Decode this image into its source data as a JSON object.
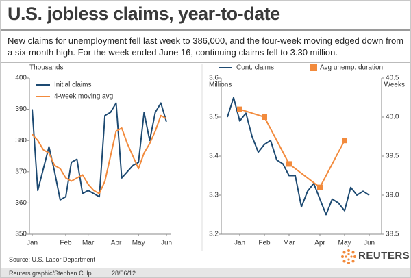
{
  "title": "U.S. jobless claims, year-to-date",
  "subtitle": "New claims for unemployment fell last week to 386,000, and the four-week moving edged down from a six-month high. For the week ended June 16, continuing claims fell to 3.30 million.",
  "source": "Source: U.S. Labor Department",
  "credit": "Reuters graphic/Stephen Culp",
  "date": "28/06/12",
  "logo": "REUTERS",
  "chart_data": [
    {
      "type": "line",
      "y_label": "Thousands",
      "categories": [
        "Jan",
        null,
        null,
        null,
        null,
        null,
        "Feb",
        null,
        null,
        null,
        "Mar",
        null,
        null,
        null,
        null,
        "Apr",
        null,
        null,
        null,
        "May",
        null,
        null,
        null,
        null,
        "Jun"
      ],
      "series": [
        {
          "name": "Initial claims",
          "color": "#1d4a72",
          "values": [
            390,
            364,
            371,
            378,
            370,
            361,
            362,
            373,
            374,
            363,
            364,
            363,
            362,
            388,
            389,
            392,
            368,
            370,
            372,
            373,
            389,
            380,
            389,
            392,
            386
          ]
        },
        {
          "name": "4-week moving avg",
          "color": "#f28a3c",
          "values": [
            382,
            380,
            377,
            376,
            372,
            371,
            368,
            367,
            368,
            369,
            366,
            364,
            363,
            367,
            375,
            383,
            384,
            379,
            375,
            371,
            376,
            379,
            383,
            388,
            387
          ]
        }
      ],
      "ylim": [
        350,
        400
      ],
      "yticks": [
        350,
        360,
        370,
        380,
        390,
        400
      ],
      "grid": false,
      "legend": "upper left"
    },
    {
      "type": "line",
      "y_label": "Millions",
      "y2_label": "Weeks",
      "categories": [
        null,
        null,
        "Jan",
        null,
        null,
        null,
        "Feb",
        null,
        null,
        null,
        "Mar",
        null,
        null,
        null,
        null,
        "Apr",
        null,
        null,
        null,
        "May",
        null,
        null,
        null,
        "Jun"
      ],
      "series": [
        {
          "name": "Cont. claims",
          "color": "#1d4a72",
          "values": [
            3.5,
            3.55,
            3.49,
            3.51,
            3.45,
            3.41,
            3.43,
            3.44,
            3.39,
            3.38,
            3.35,
            3.35,
            3.27,
            3.31,
            3.33,
            3.29,
            3.25,
            3.29,
            3.28,
            3.26,
            3.32,
            3.3,
            3.31,
            3.3
          ]
        },
        {
          "name": "Avg unemp. duration",
          "color": "#f28a3c",
          "axis": "y2",
          "marker": "square",
          "values": [
            null,
            null,
            40.1,
            null,
            null,
            null,
            40.0,
            null,
            null,
            null,
            39.4,
            null,
            null,
            null,
            null,
            39.1,
            null,
            null,
            null,
            39.7,
            null,
            null,
            null,
            null
          ]
        }
      ],
      "ylim": [
        3.2,
        3.6
      ],
      "yticks": [
        3.2,
        3.3,
        3.4,
        3.5,
        3.6
      ],
      "y2lim": [
        38.5,
        40.5
      ],
      "y2ticks": [
        38.5,
        {
          "value": 39,
          "label": "39.0"
        },
        39.5,
        {
          "value": 40,
          "label": "40.0"
        },
        40.5
      ],
      "grid": false,
      "legend": "top"
    }
  ]
}
